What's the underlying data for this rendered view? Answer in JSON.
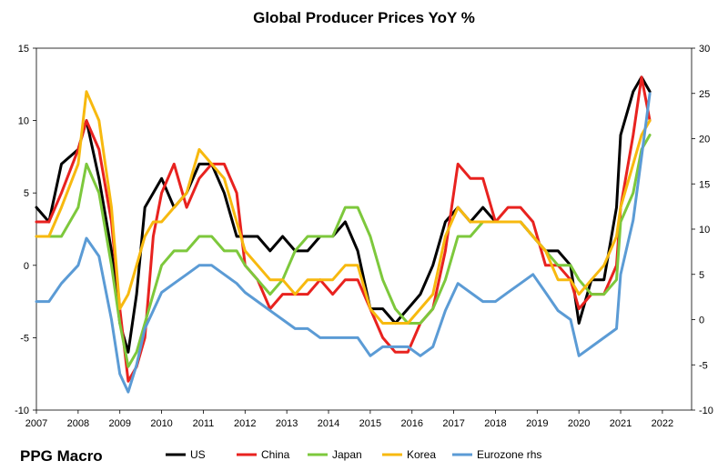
{
  "brand": "PPG Macro",
  "chart_data": {
    "type": "line",
    "title": "Global Producer Prices YoY %",
    "xlabel": "",
    "ylabel": "",
    "x_ticks": [
      "2007",
      "2008",
      "2009",
      "2010",
      "2011",
      "2012",
      "2013",
      "2014",
      "2015",
      "2016",
      "2017",
      "2018",
      "2019",
      "2020",
      "2021",
      "2022"
    ],
    "xlim": [
      2007,
      2022.7
    ],
    "y_left": {
      "ylim": [
        -10,
        15
      ],
      "ticks": [
        "-10",
        "-5",
        "0",
        "5",
        "10",
        "15"
      ]
    },
    "y_right": {
      "ylim": [
        -10,
        30
      ],
      "ticks": [
        "-10",
        "-5",
        "0",
        "5",
        "10",
        "15",
        "20",
        "25",
        "30"
      ]
    },
    "grid": false,
    "legend_position": "bottom",
    "series": [
      {
        "name": "US",
        "color": "#000000",
        "axis": "left",
        "x": [
          2007.0,
          2007.3,
          2007.6,
          2008.0,
          2008.2,
          2008.5,
          2008.8,
          2009.0,
          2009.2,
          2009.4,
          2009.6,
          2009.8,
          2010.0,
          2010.3,
          2010.6,
          2010.9,
          2011.2,
          2011.5,
          2011.8,
          2012.0,
          2012.3,
          2012.6,
          2012.9,
          2013.2,
          2013.5,
          2013.8,
          2014.1,
          2014.4,
          2014.7,
          2015.0,
          2015.3,
          2015.6,
          2015.9,
          2016.2,
          2016.5,
          2016.8,
          2017.1,
          2017.4,
          2017.7,
          2018.0,
          2018.3,
          2018.6,
          2018.9,
          2019.2,
          2019.5,
          2019.8,
          2020.0,
          2020.3,
          2020.6,
          2020.9,
          2021.0,
          2021.3,
          2021.5,
          2021.7
        ],
        "values": [
          4,
          3,
          7,
          8,
          10,
          6,
          1,
          -4,
          -6,
          -2,
          4,
          5,
          6,
          4,
          5,
          7,
          7,
          5,
          2,
          2,
          2,
          1,
          2,
          1,
          1,
          2,
          2,
          3,
          1,
          -3,
          -3,
          -4,
          -3,
          -2,
          0,
          3,
          4,
          3,
          4,
          3,
          3,
          3,
          2,
          1,
          1,
          0,
          -4,
          -1,
          -1,
          4,
          9,
          12,
          13,
          12
        ]
      },
      {
        "name": "China",
        "color": "#e8221f",
        "axis": "left",
        "x": [
          2007.0,
          2007.3,
          2007.6,
          2008.0,
          2008.2,
          2008.5,
          2008.8,
          2009.0,
          2009.2,
          2009.4,
          2009.6,
          2009.8,
          2010.0,
          2010.3,
          2010.6,
          2010.9,
          2011.2,
          2011.5,
          2011.8,
          2012.0,
          2012.3,
          2012.6,
          2012.9,
          2013.2,
          2013.5,
          2013.8,
          2014.1,
          2014.4,
          2014.7,
          2015.0,
          2015.3,
          2015.6,
          2015.9,
          2016.2,
          2016.5,
          2016.8,
          2017.1,
          2017.4,
          2017.7,
          2018.0,
          2018.3,
          2018.6,
          2018.9,
          2019.2,
          2019.5,
          2019.8,
          2020.0,
          2020.3,
          2020.6,
          2020.9,
          2021.0,
          2021.3,
          2021.5,
          2021.7
        ],
        "values": [
          3,
          3,
          5,
          8,
          10,
          8,
          3,
          -3,
          -8,
          -7,
          -5,
          2,
          5,
          7,
          4,
          6,
          7,
          7,
          5,
          0,
          -1,
          -3,
          -2,
          -2,
          -2,
          -1,
          -2,
          -1,
          -1,
          -3,
          -5,
          -6,
          -6,
          -4,
          -3,
          1,
          7,
          6,
          6,
          3,
          4,
          4,
          3,
          0,
          0,
          -1,
          -3,
          -2,
          -2,
          0,
          4,
          9,
          13,
          10
        ]
      },
      {
        "name": "Japan",
        "color": "#7dc83c",
        "axis": "left",
        "x": [
          2007.0,
          2007.3,
          2007.6,
          2008.0,
          2008.2,
          2008.5,
          2008.8,
          2009.0,
          2009.2,
          2009.4,
          2009.6,
          2009.8,
          2010.0,
          2010.3,
          2010.6,
          2010.9,
          2011.2,
          2011.5,
          2011.8,
          2012.0,
          2012.3,
          2012.6,
          2012.9,
          2013.2,
          2013.5,
          2013.8,
          2014.1,
          2014.4,
          2014.7,
          2015.0,
          2015.3,
          2015.6,
          2015.9,
          2016.2,
          2016.5,
          2016.8,
          2017.1,
          2017.4,
          2017.7,
          2018.0,
          2018.3,
          2018.6,
          2018.9,
          2019.2,
          2019.5,
          2019.8,
          2020.0,
          2020.3,
          2020.6,
          2020.9,
          2021.0,
          2021.3,
          2021.5,
          2021.7
        ],
        "values": [
          2,
          2,
          2,
          4,
          7,
          5,
          0,
          -4,
          -7,
          -6,
          -4,
          -2,
          0,
          1,
          1,
          2,
          2,
          1,
          1,
          0,
          -1,
          -2,
          -1,
          1,
          2,
          2,
          2,
          4,
          4,
          2,
          -1,
          -3,
          -4,
          -4,
          -3,
          -1,
          2,
          2,
          3,
          3,
          3,
          3,
          2,
          1,
          0,
          0,
          -1,
          -2,
          -2,
          -1,
          3,
          5,
          8,
          9
        ]
      },
      {
        "name": "Korea",
        "color": "#f7b90f",
        "axis": "left",
        "x": [
          2007.0,
          2007.3,
          2007.6,
          2008.0,
          2008.2,
          2008.5,
          2008.8,
          2009.0,
          2009.2,
          2009.4,
          2009.6,
          2009.8,
          2010.0,
          2010.3,
          2010.6,
          2010.9,
          2011.2,
          2011.5,
          2011.8,
          2012.0,
          2012.3,
          2012.6,
          2012.9,
          2013.2,
          2013.5,
          2013.8,
          2014.1,
          2014.4,
          2014.7,
          2015.0,
          2015.3,
          2015.6,
          2015.9,
          2016.2,
          2016.5,
          2016.8,
          2017.1,
          2017.4,
          2017.7,
          2018.0,
          2018.3,
          2018.6,
          2018.9,
          2019.2,
          2019.5,
          2019.8,
          2020.0,
          2020.3,
          2020.6,
          2020.9,
          2021.0,
          2021.3,
          2021.5,
          2021.7
        ],
        "values": [
          2,
          2,
          4,
          7,
          12,
          10,
          4,
          -3,
          -2,
          0,
          2,
          3,
          3,
          4,
          5,
          8,
          7,
          6,
          3,
          1,
          0,
          -1,
          -1,
          -2,
          -1,
          -1,
          -1,
          0,
          0,
          -3,
          -4,
          -4,
          -4,
          -3,
          -2,
          2,
          4,
          3,
          3,
          3,
          3,
          3,
          2,
          1,
          -1,
          -1,
          -2,
          -1,
          0,
          2,
          4,
          7,
          9,
          10
        ]
      },
      {
        "name": "Eurozone rhs",
        "color": "#5b9bd5",
        "axis": "right",
        "x": [
          2007.0,
          2007.3,
          2007.6,
          2008.0,
          2008.2,
          2008.5,
          2008.8,
          2009.0,
          2009.2,
          2009.4,
          2009.6,
          2009.8,
          2010.0,
          2010.3,
          2010.6,
          2010.9,
          2011.2,
          2011.5,
          2011.8,
          2012.0,
          2012.3,
          2012.6,
          2012.9,
          2013.2,
          2013.5,
          2013.8,
          2014.1,
          2014.4,
          2014.7,
          2015.0,
          2015.3,
          2015.6,
          2015.9,
          2016.2,
          2016.5,
          2016.8,
          2017.1,
          2017.4,
          2017.7,
          2018.0,
          2018.3,
          2018.6,
          2018.9,
          2019.2,
          2019.5,
          2019.8,
          2020.0,
          2020.3,
          2020.6,
          2020.9,
          2021.0,
          2021.3,
          2021.5,
          2021.7
        ],
        "values": [
          2,
          2,
          4,
          6,
          9,
          7,
          0,
          -6,
          -8,
          -5,
          -1,
          1,
          3,
          4,
          5,
          6,
          6,
          5,
          4,
          3,
          2,
          1,
          0,
          -1,
          -1,
          -2,
          -2,
          -2,
          -2,
          -4,
          -3,
          -3,
          -3,
          -4,
          -3,
          1,
          4,
          3,
          2,
          2,
          3,
          4,
          5,
          3,
          1,
          0,
          -4,
          -3,
          -2,
          -1,
          5,
          11,
          18,
          25
        ]
      }
    ]
  }
}
